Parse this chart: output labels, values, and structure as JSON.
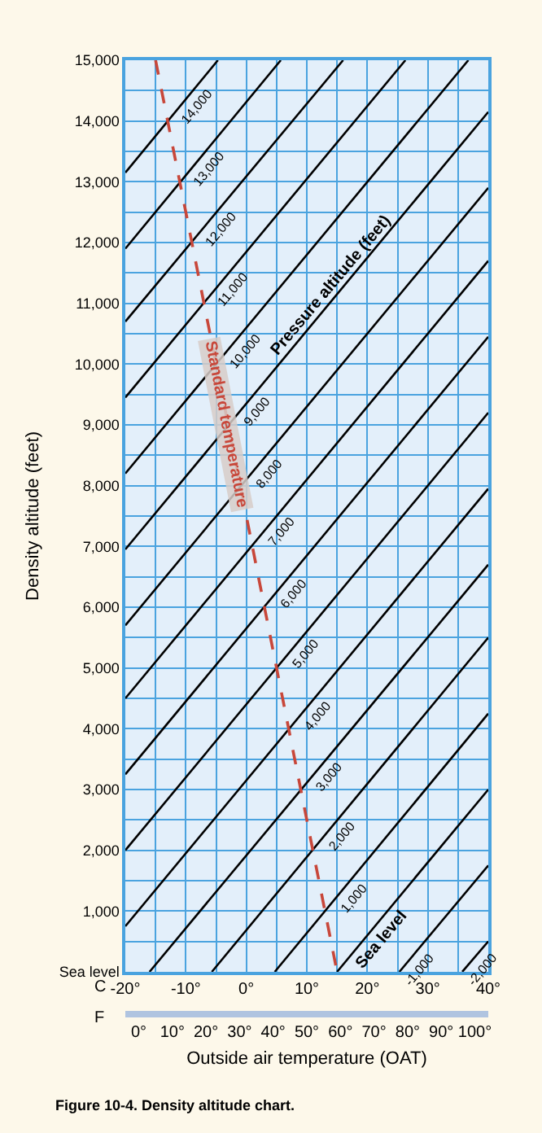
{
  "chart_data": {
    "type": "line",
    "xlabel": "Outside air temperature (OAT)",
    "ylabel": "Density altitude (feet)",
    "annotations": [
      "Pressure altitude (feet)",
      "C",
      "F",
      "Figure 10-4. Density altitude chart."
    ],
    "xlim": [
      -20,
      40
    ],
    "ylim": [
      0,
      15000
    ],
    "xticks": [
      {
        "value": -20,
        "label": "-20°"
      },
      {
        "value": -15,
        "label": null
      },
      {
        "value": -10,
        "label": "-10°"
      },
      {
        "value": -5,
        "label": null
      },
      {
        "value": 0,
        "label": "0°"
      },
      {
        "value": 5,
        "label": null
      },
      {
        "value": 10,
        "label": "10°"
      },
      {
        "value": 15,
        "label": null
      },
      {
        "value": 20,
        "label": "20°"
      },
      {
        "value": 25,
        "label": null
      },
      {
        "value": 30,
        "label": "30°"
      },
      {
        "value": 35,
        "label": null
      },
      {
        "value": 40,
        "label": "40°"
      }
    ],
    "yticks": [
      {
        "value": 0,
        "label": "Sea level"
      },
      {
        "value": 500,
        "label": null
      },
      {
        "value": 1000,
        "label": "1,000"
      },
      {
        "value": 1500,
        "label": null
      },
      {
        "value": 2000,
        "label": "2,000"
      },
      {
        "value": 2500,
        "label": null
      },
      {
        "value": 3000,
        "label": "3,000"
      },
      {
        "value": 3500,
        "label": null
      },
      {
        "value": 4000,
        "label": "4,000"
      },
      {
        "value": 4500,
        "label": null
      },
      {
        "value": 5000,
        "label": "5,000"
      },
      {
        "value": 5500,
        "label": null
      },
      {
        "value": 6000,
        "label": "6,000"
      },
      {
        "value": 6500,
        "label": null
      },
      {
        "value": 7000,
        "label": "7,000"
      },
      {
        "value": 7500,
        "label": null
      },
      {
        "value": 8000,
        "label": "8,000"
      },
      {
        "value": 8500,
        "label": null
      },
      {
        "value": 9000,
        "label": "9,000"
      },
      {
        "value": 9500,
        "label": null
      },
      {
        "value": 10000,
        "label": "10,000"
      },
      {
        "value": 10500,
        "label": null
      },
      {
        "value": 11000,
        "label": "11,000"
      },
      {
        "value": 11500,
        "label": null
      },
      {
        "value": 12000,
        "label": "12,000"
      },
      {
        "value": 12500,
        "label": null
      },
      {
        "value": 13000,
        "label": "13,000"
      },
      {
        "value": 13500,
        "label": null
      },
      {
        "value": 14000,
        "label": "14,000"
      },
      {
        "value": 14500,
        "label": null
      },
      {
        "value": 15000,
        "label": "15,000"
      }
    ],
    "x2lim": [
      -4,
      104
    ],
    "x2ticks": [
      {
        "value": 0,
        "label": "0°"
      },
      {
        "value": 10,
        "label": "10°"
      },
      {
        "value": 20,
        "label": "20°"
      },
      {
        "value": 30,
        "label": "30°"
      },
      {
        "value": 40,
        "label": "40°"
      },
      {
        "value": 50,
        "label": "50°"
      },
      {
        "value": 60,
        "label": "60°"
      },
      {
        "value": 70,
        "label": "70°"
      },
      {
        "value": 80,
        "label": "80°"
      },
      {
        "value": 90,
        "label": "90°"
      },
      {
        "value": 100,
        "label": "100°"
      }
    ],
    "grid": true,
    "series": [
      {
        "name": "-2,000",
        "color": "#000000",
        "x": [
          35.7,
          40
        ],
        "values": [
          0,
          500
        ]
      },
      {
        "name": "-1,000",
        "color": "#000000",
        "x": [
          25.3,
          40
        ],
        "values": [
          0,
          1750
        ]
      },
      {
        "name": "Sea level",
        "color": "#000000",
        "x": [
          15,
          40
        ],
        "values": [
          0,
          3000
        ]
      },
      {
        "name": "1,000",
        "color": "#000000",
        "x": [
          4.7,
          40
        ],
        "values": [
          0,
          4250
        ]
      },
      {
        "name": "2,000",
        "color": "#000000",
        "x": [
          -5.7,
          40
        ],
        "values": [
          0,
          5500
        ]
      },
      {
        "name": "3,000",
        "color": "#000000",
        "x": [
          -16,
          40
        ],
        "values": [
          0,
          6700
        ]
      },
      {
        "name": "4,000",
        "color": "#000000",
        "x": [
          -20,
          40
        ],
        "values": [
          750,
          7950
        ]
      },
      {
        "name": "5,000",
        "color": "#000000",
        "x": [
          -20,
          40
        ],
        "values": [
          2000,
          9200
        ]
      },
      {
        "name": "6,000",
        "color": "#000000",
        "x": [
          -20,
          40
        ],
        "values": [
          3250,
          10450
        ]
      },
      {
        "name": "7,000",
        "color": "#000000",
        "x": [
          -20,
          40
        ],
        "values": [
          4500,
          11700
        ]
      },
      {
        "name": "8,000",
        "color": "#000000",
        "x": [
          -20,
          40
        ],
        "values": [
          5700,
          12900
        ]
      },
      {
        "name": "9,000",
        "color": "#000000",
        "x": [
          -20,
          40
        ],
        "values": [
          6950,
          14150
        ]
      },
      {
        "name": "10,000",
        "color": "#000000",
        "x": [
          -20,
          36.7
        ],
        "values": [
          8200,
          15000
        ]
      },
      {
        "name": "11,000",
        "color": "#000000",
        "x": [
          -20,
          26.3
        ],
        "values": [
          9450,
          15000
        ]
      },
      {
        "name": "12,000",
        "color": "#000000",
        "x": [
          -20,
          16
        ],
        "values": [
          10700,
          15000
        ]
      },
      {
        "name": "13,000",
        "color": "#000000",
        "x": [
          -20,
          5.7
        ],
        "values": [
          11900,
          15000
        ]
      },
      {
        "name": "14,000",
        "color": "#000000",
        "x": [
          -20,
          -4.7
        ],
        "values": [
          13150,
          15000
        ]
      },
      {
        "name": "Standard temperature",
        "color": "#c8473a",
        "line_style": "dashed",
        "x": [
          -15,
          15
        ],
        "values": [
          15000,
          0
        ]
      }
    ]
  }
}
